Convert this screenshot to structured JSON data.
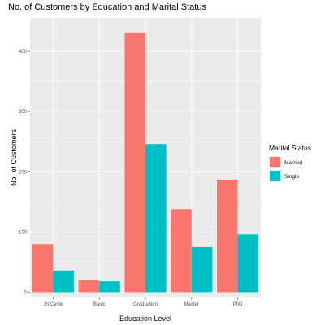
{
  "chart_data": {
    "type": "bar",
    "title": "No. of Customers by Education and Marital Status",
    "xlabel": "Education Level",
    "ylabel": "No. of Customers",
    "categories": [
      "2n Cycle",
      "Basic",
      "Graduation",
      "Master",
      "PhD"
    ],
    "series": [
      {
        "name": "Married",
        "color": "#F8766D",
        "values": [
          80,
          20,
          430,
          138,
          187
        ]
      },
      {
        "name": "Single",
        "color": "#00BFC4",
        "values": [
          36,
          18,
          246,
          75,
          96
        ]
      }
    ],
    "y_ticks": [
      0,
      100,
      200,
      300,
      400
    ],
    "ylim": [
      0,
      450
    ],
    "grid": true,
    "legend": {
      "title": "Marital Status",
      "position": "right"
    },
    "panel_background": "#EBEBEB",
    "grid_color": "#FFFFFF"
  }
}
